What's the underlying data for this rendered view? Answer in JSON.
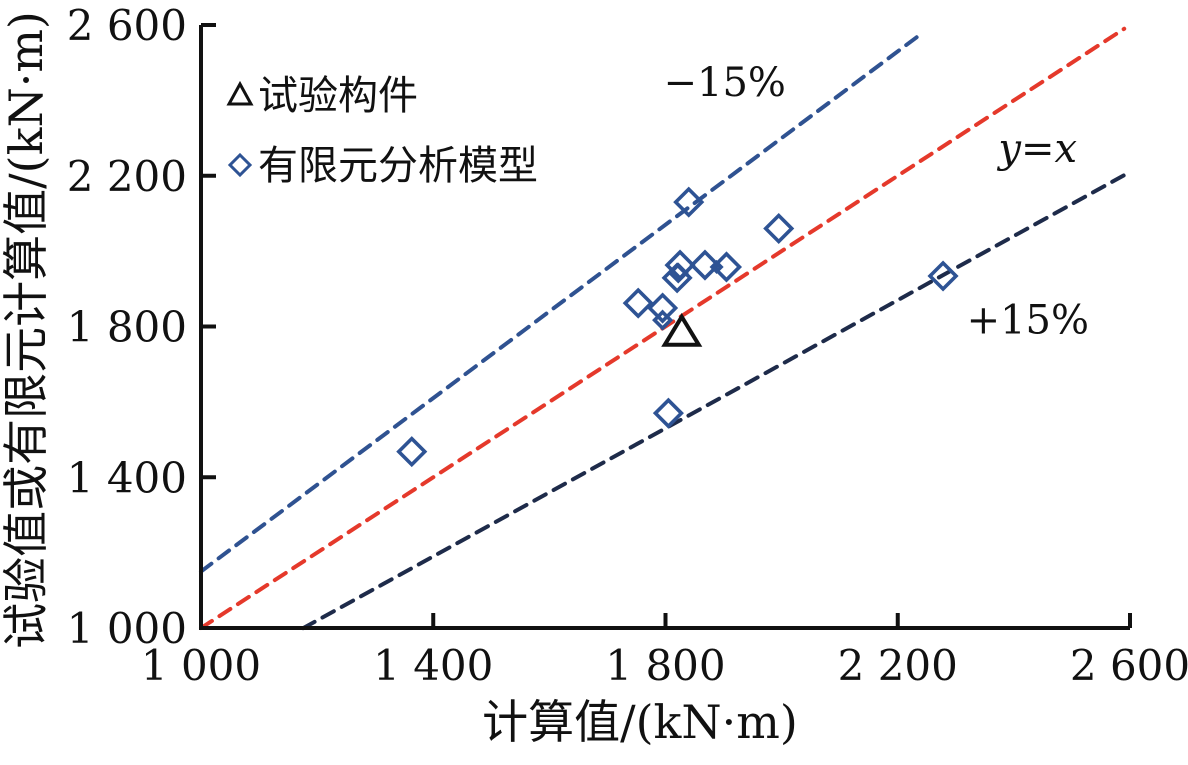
{
  "chart_data": {
    "type": "scatter",
    "title": "",
    "xlabel": "计算值/(kN·m)",
    "ylabel": "试验值或有限元计算值/(kN·m)",
    "xlim": [
      1000,
      2600
    ],
    "ylim": [
      1000,
      2600
    ],
    "grid": false,
    "x_ticks": [
      {
        "value": 1000,
        "label": "1 000"
      },
      {
        "value": 1400,
        "label": "1 400"
      },
      {
        "value": 1800,
        "label": "1 800"
      },
      {
        "value": 2200,
        "label": "2 200"
      },
      {
        "value": 2600,
        "label": "2 600"
      }
    ],
    "y_ticks": [
      {
        "value": 1000,
        "label": "1 000"
      },
      {
        "value": 1400,
        "label": "1 400"
      },
      {
        "value": 1800,
        "label": "1 800"
      },
      {
        "value": 2200,
        "label": "2 200"
      },
      {
        "value": 2600,
        "label": "2 600"
      }
    ],
    "series": [
      {
        "name": "试验构件",
        "marker": "triangle",
        "color": "#111111",
        "points": [
          {
            "x": 1828,
            "y": 1786,
            "size": "large"
          }
        ]
      },
      {
        "name": "有限元分析模型",
        "marker": "diamond",
        "color": "#2e5394",
        "points": [
          {
            "x": 1840,
            "y": 2130,
            "size": "large"
          },
          {
            "x": 1995,
            "y": 2060,
            "size": "large"
          },
          {
            "x": 1825,
            "y": 1963,
            "size": "large"
          },
          {
            "x": 1820,
            "y": 1929,
            "size": "large"
          },
          {
            "x": 1822,
            "y": 1942,
            "size": "small"
          },
          {
            "x": 1868,
            "y": 1963,
            "size": "large"
          },
          {
            "x": 1888,
            "y": 1958,
            "size": "tiny"
          },
          {
            "x": 1905,
            "y": 1958,
            "size": "large"
          },
          {
            "x": 1753,
            "y": 1862,
            "size": "large"
          },
          {
            "x": 1795,
            "y": 1849,
            "size": "large"
          },
          {
            "x": 1795,
            "y": 1817,
            "size": "small"
          },
          {
            "x": 1805,
            "y": 1570,
            "size": "large"
          },
          {
            "x": 1363,
            "y": 1468,
            "size": "large"
          },
          {
            "x": 2278,
            "y": 1934,
            "size": "large"
          }
        ]
      }
    ],
    "reference_lines": [
      {
        "label": "−15%",
        "slope": 1.15,
        "x_start": 1000,
        "x_end": 2238,
        "color": "#2f5291",
        "style": "dashed"
      },
      {
        "label": "y=x",
        "slope": 1.0,
        "x_start": 1000,
        "x_end": 2590,
        "color": "#e5392b",
        "style": "dashed"
      },
      {
        "label": "+15%",
        "slope": 0.85,
        "x_start": 1176,
        "x_end": 2600,
        "color": "#1e2b4a",
        "style": "dashed"
      }
    ],
    "annotations": [
      {
        "text": "−15%",
        "x": 1902,
        "y": 2449,
        "italic": false
      },
      {
        "text": "y=x",
        "x": 2441,
        "y": 2274,
        "italic": true
      },
      {
        "text": "+15%",
        "x": 2424,
        "y": 1818,
        "italic": false
      }
    ],
    "legend": {
      "position": "top-left",
      "items": [
        {
          "marker": "triangle",
          "label": "试验构件",
          "color": "#111111"
        },
        {
          "marker": "diamond",
          "label": "有限元分析模型",
          "color": "#2e5394"
        }
      ]
    },
    "colors": {
      "axis": "#111111",
      "fe_series": "#2e5394",
      "minus15_line": "#2f5291",
      "yx_line": "#e5392b",
      "plus15_line": "#1e2b4a"
    }
  }
}
